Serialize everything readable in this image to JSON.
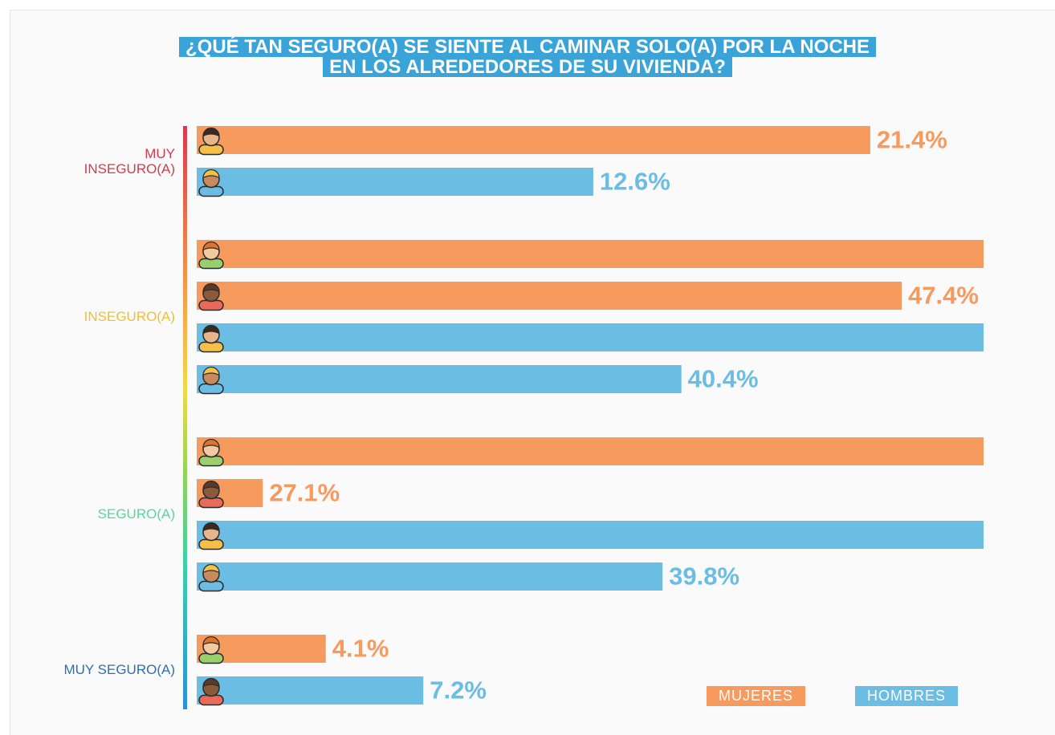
{
  "chart_data": {
    "type": "wrapped-bar",
    "title": [
      "¿QUÉ TAN SEGURO(A) SE SIENTE AL CAMINAR SOLO(A) POR LA NOCHE",
      "EN LOS ALREDEDORES DE SU VIVIENDA?"
    ],
    "categories": [
      "MUY INSEGURO(A)",
      "INSEGURO(A)",
      "SEGURO(A)",
      "MUY SEGURO(A)"
    ],
    "category_colors": [
      "#d63a4f",
      "#efc12f",
      "#5bd39b",
      "#2c6fb5"
    ],
    "series": [
      {
        "name": "MUJERES",
        "color": "#f79a5e",
        "values": [
          21.4,
          47.4,
          27.1,
          4.1
        ],
        "value_labels": [
          "21.4%",
          "47.4%",
          "27.1%",
          "4.1%"
        ]
      },
      {
        "name": "HOMBRES",
        "color": "#6bbde3",
        "values": [
          12.6,
          40.4,
          39.8,
          7.2
        ],
        "value_labels": [
          "12.6%",
          "40.4%",
          "39.8%",
          "7.2%"
        ]
      }
    ],
    "xlim": [
      0,
      25
    ],
    "legend": "bottom-right"
  }
}
